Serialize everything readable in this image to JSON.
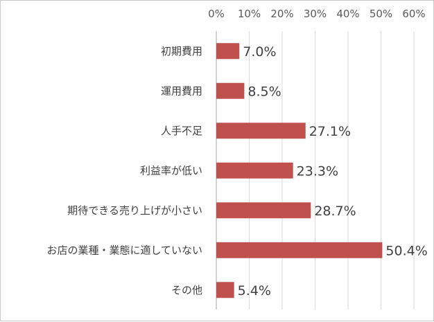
{
  "chart_data": {
    "type": "bar",
    "orientation": "horizontal",
    "title": "",
    "xlabel": "",
    "ylabel": "",
    "categories": [
      "初期費用",
      "運用費用",
      "人手不足",
      "利益率が低い",
      "期待できる売り上げが小さい",
      "お店の業種・業態に適していない",
      "その他"
    ],
    "values": [
      7.0,
      8.5,
      27.1,
      23.3,
      28.7,
      50.4,
      5.4
    ],
    "value_labels": [
      "7.0%",
      "8.5%",
      "27.1%",
      "23.3%",
      "28.7%",
      "50.4%",
      "5.4%"
    ],
    "xlim": [
      0,
      60
    ],
    "x_ticks": [
      "0%",
      "10%",
      "20%",
      "30%",
      "40%",
      "50%",
      "60%"
    ],
    "x_axis_position": "top",
    "grid": true,
    "legend": "none",
    "bar_color": "#c0504d",
    "grid_color": "#d9d9d9"
  }
}
